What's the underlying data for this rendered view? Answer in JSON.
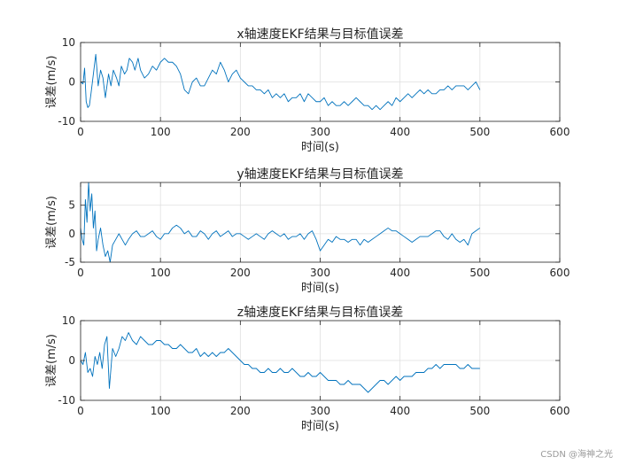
{
  "chart_data": [
    {
      "type": "line",
      "title": "x轴速度EKF结果与目标值误差",
      "xlabel": "时间(s)",
      "ylabel": "误差(m/s)",
      "xlim": [
        0,
        600
      ],
      "ylim": [
        -10,
        10
      ],
      "xticks": [
        0,
        100,
        200,
        300,
        400,
        500,
        600
      ],
      "yticks": [
        -10,
        0,
        10
      ],
      "grid": true,
      "series": [
        {
          "color": "#0072BD",
          "x": [
            0,
            3,
            5,
            7,
            9,
            11,
            13,
            16,
            19,
            22,
            25,
            28,
            31,
            35,
            38,
            41,
            45,
            48,
            51,
            55,
            58,
            61,
            65,
            68,
            72,
            75,
            80,
            85,
            90,
            95,
            100,
            105,
            110,
            115,
            120,
            125,
            130,
            135,
            140,
            145,
            150,
            155,
            160,
            165,
            170,
            175,
            180,
            185,
            190,
            195,
            200,
            205,
            210,
            215,
            220,
            225,
            230,
            235,
            240,
            245,
            250,
            255,
            260,
            265,
            270,
            275,
            280,
            285,
            290,
            295,
            300,
            305,
            310,
            315,
            320,
            325,
            330,
            335,
            340,
            345,
            350,
            355,
            360,
            365,
            370,
            375,
            380,
            385,
            390,
            395,
            400,
            405,
            410,
            415,
            420,
            425,
            430,
            435,
            440,
            445,
            450,
            455,
            460,
            465,
            470,
            475,
            480,
            485,
            490,
            495,
            500
          ],
          "y": [
            0,
            -0.5,
            3.5,
            -5,
            -6.5,
            -6,
            -3,
            2,
            7,
            -1,
            3,
            1,
            -4,
            2,
            -1,
            3,
            1,
            -1,
            4,
            2,
            3,
            6,
            5,
            3,
            6,
            3,
            1,
            2,
            4,
            3,
            5,
            6,
            5,
            5,
            4,
            2,
            -2,
            -3,
            0,
            1,
            -1,
            -1,
            1,
            3,
            2,
            5,
            3,
            0,
            2,
            3,
            1,
            0,
            -1,
            -1,
            -2,
            -2,
            -3,
            -2,
            -4,
            -3,
            -4,
            -3,
            -5,
            -4,
            -4,
            -3,
            -5,
            -3,
            -4,
            -5,
            -5,
            -4,
            -6,
            -5,
            -6,
            -6,
            -5,
            -6,
            -5,
            -4,
            -5,
            -6,
            -6,
            -7,
            -6,
            -7,
            -6,
            -5,
            -6,
            -4,
            -5,
            -4,
            -3,
            -4,
            -3,
            -2,
            -3,
            -2,
            -3,
            -3,
            -2,
            -2,
            -1,
            -2,
            -1,
            -1,
            -1,
            -2,
            -1,
            0,
            -2
          ]
        }
      ]
    },
    {
      "type": "line",
      "title": "y轴速度EKF结果与目标值误差",
      "xlabel": "时间(s)",
      "ylabel": "误差(m/s)",
      "xlim": [
        0,
        600
      ],
      "ylim": [
        -5,
        9
      ],
      "xticks": [
        0,
        100,
        200,
        300,
        400,
        500,
        600
      ],
      "yticks": [
        -5,
        0,
        5
      ],
      "grid": true,
      "series": [
        {
          "color": "#0072BD",
          "x": [
            0,
            2,
            4,
            6,
            8,
            10,
            12,
            14,
            16,
            18,
            20,
            22,
            25,
            28,
            31,
            34,
            37,
            40,
            44,
            48,
            52,
            56,
            60,
            65,
            70,
            75,
            80,
            85,
            90,
            95,
            100,
            105,
            110,
            115,
            120,
            125,
            130,
            135,
            140,
            145,
            150,
            155,
            160,
            165,
            170,
            175,
            180,
            185,
            190,
            195,
            200,
            205,
            210,
            215,
            220,
            225,
            230,
            235,
            240,
            245,
            250,
            255,
            260,
            265,
            270,
            275,
            280,
            285,
            290,
            295,
            300,
            305,
            310,
            315,
            320,
            325,
            330,
            335,
            340,
            345,
            350,
            355,
            360,
            365,
            370,
            375,
            380,
            385,
            390,
            395,
            400,
            405,
            410,
            415,
            420,
            425,
            430,
            435,
            440,
            445,
            450,
            455,
            460,
            465,
            470,
            475,
            480,
            485,
            490,
            495,
            500
          ],
          "y": [
            1,
            -1,
            -2,
            6,
            2,
            9,
            4,
            7,
            1,
            4,
            -3,
            -1,
            1,
            -2,
            -4,
            -3,
            -5,
            -2,
            -1,
            0,
            -1,
            -2,
            -1,
            0,
            0.5,
            -0.5,
            -0.5,
            0,
            0.5,
            -0.5,
            -1,
            0,
            0,
            1,
            1.5,
            1,
            0,
            0.5,
            -0.5,
            -0.5,
            0.5,
            0,
            -1,
            0,
            0.5,
            -0.5,
            0,
            0.5,
            -0.5,
            0,
            0,
            -0.5,
            -1,
            -0.5,
            0,
            -0.5,
            -1,
            0,
            0.5,
            0,
            -0.5,
            0,
            -1,
            -0.5,
            -0.5,
            0,
            -1,
            0,
            0.5,
            -1,
            -3,
            -2,
            -1,
            -1.5,
            -0.5,
            -1,
            -1,
            -1.5,
            -1,
            -1,
            -2,
            -1,
            -1.5,
            -1,
            -0.5,
            0,
            0.5,
            1,
            0.5,
            0.5,
            0,
            -0.5,
            -1,
            -1.5,
            -1,
            -0.5,
            -0.5,
            -0.5,
            0,
            0.5,
            0.5,
            -0.5,
            -1,
            0,
            -1,
            -1.5,
            -1,
            -2,
            0,
            0.5,
            1
          ]
        }
      ]
    },
    {
      "type": "line",
      "title": "z轴速度EKF结果与目标值误差",
      "xlabel": "时间(s)",
      "ylabel": "误差(m/s)",
      "xlim": [
        0,
        600
      ],
      "ylim": [
        -10,
        10
      ],
      "xticks": [
        0,
        100,
        200,
        300,
        400,
        500,
        600
      ],
      "yticks": [
        -10,
        0,
        10
      ],
      "grid": true,
      "series": [
        {
          "color": "#0072BD",
          "x": [
            0,
            3,
            6,
            9,
            12,
            15,
            18,
            21,
            24,
            27,
            30,
            33,
            36,
            40,
            44,
            48,
            52,
            56,
            60,
            65,
            70,
            75,
            80,
            85,
            90,
            95,
            100,
            105,
            110,
            115,
            120,
            125,
            130,
            135,
            140,
            145,
            150,
            155,
            160,
            165,
            170,
            175,
            180,
            185,
            190,
            195,
            200,
            205,
            210,
            215,
            220,
            225,
            230,
            235,
            240,
            245,
            250,
            255,
            260,
            265,
            270,
            275,
            280,
            285,
            290,
            295,
            300,
            305,
            310,
            315,
            320,
            325,
            330,
            335,
            340,
            345,
            350,
            355,
            360,
            365,
            370,
            375,
            380,
            385,
            390,
            395,
            400,
            405,
            410,
            415,
            420,
            425,
            430,
            435,
            440,
            445,
            450,
            455,
            460,
            465,
            470,
            475,
            480,
            485,
            490,
            495,
            500
          ],
          "y": [
            0,
            -1,
            2,
            -3,
            -2,
            -4,
            1,
            -1,
            2,
            -2,
            4,
            6,
            -7,
            3,
            1,
            3,
            6,
            5,
            7,
            5,
            4,
            6,
            5,
            4,
            4,
            5,
            5,
            4,
            4,
            3,
            3,
            4,
            3,
            2,
            2,
            3,
            1,
            2,
            1,
            2,
            1,
            2,
            2,
            3,
            2,
            1,
            0,
            -1,
            -1,
            -2,
            -2,
            -3,
            -3,
            -2,
            -3,
            -3,
            -2,
            -3,
            -3,
            -2,
            -3,
            -4,
            -4,
            -3,
            -4,
            -4,
            -3,
            -4,
            -5,
            -5,
            -5,
            -6,
            -6,
            -5,
            -6,
            -6,
            -6,
            -7,
            -8,
            -7,
            -6,
            -5,
            -5,
            -6,
            -5,
            -4,
            -5,
            -4,
            -4,
            -4,
            -3,
            -3,
            -3,
            -2,
            -2,
            -1,
            -2,
            -1,
            -1,
            -1,
            -1,
            -2,
            -2,
            -1,
            -2,
            -2,
            -2
          ]
        }
      ]
    }
  ],
  "watermark": "CSDN @海神之光"
}
